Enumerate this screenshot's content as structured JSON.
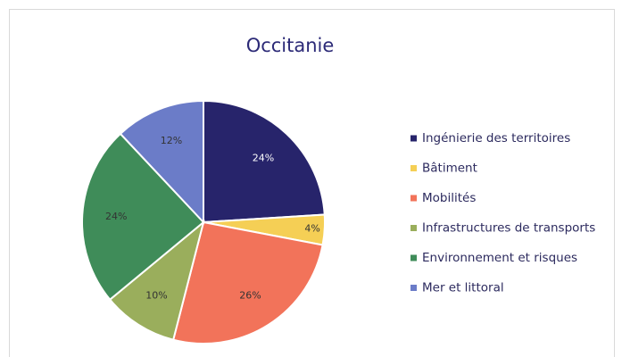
{
  "chart_data": {
    "type": "pie",
    "title": "Occitanie",
    "categories": [
      "Ingénierie des territoires",
      "Bâtiment",
      "Mobilités",
      "Infrastructures de transports",
      "Environnement et risques",
      "Mer et littoral"
    ],
    "values": [
      24,
      4,
      26,
      10,
      24,
      12
    ],
    "value_labels": [
      "24%",
      "4%",
      "26%",
      "10%",
      "24%",
      "12%"
    ],
    "colors": [
      "#27246b",
      "#f5cf55",
      "#f2735a",
      "#9aae5c",
      "#3f8c59",
      "#6b7cc8"
    ],
    "legend": "right"
  }
}
